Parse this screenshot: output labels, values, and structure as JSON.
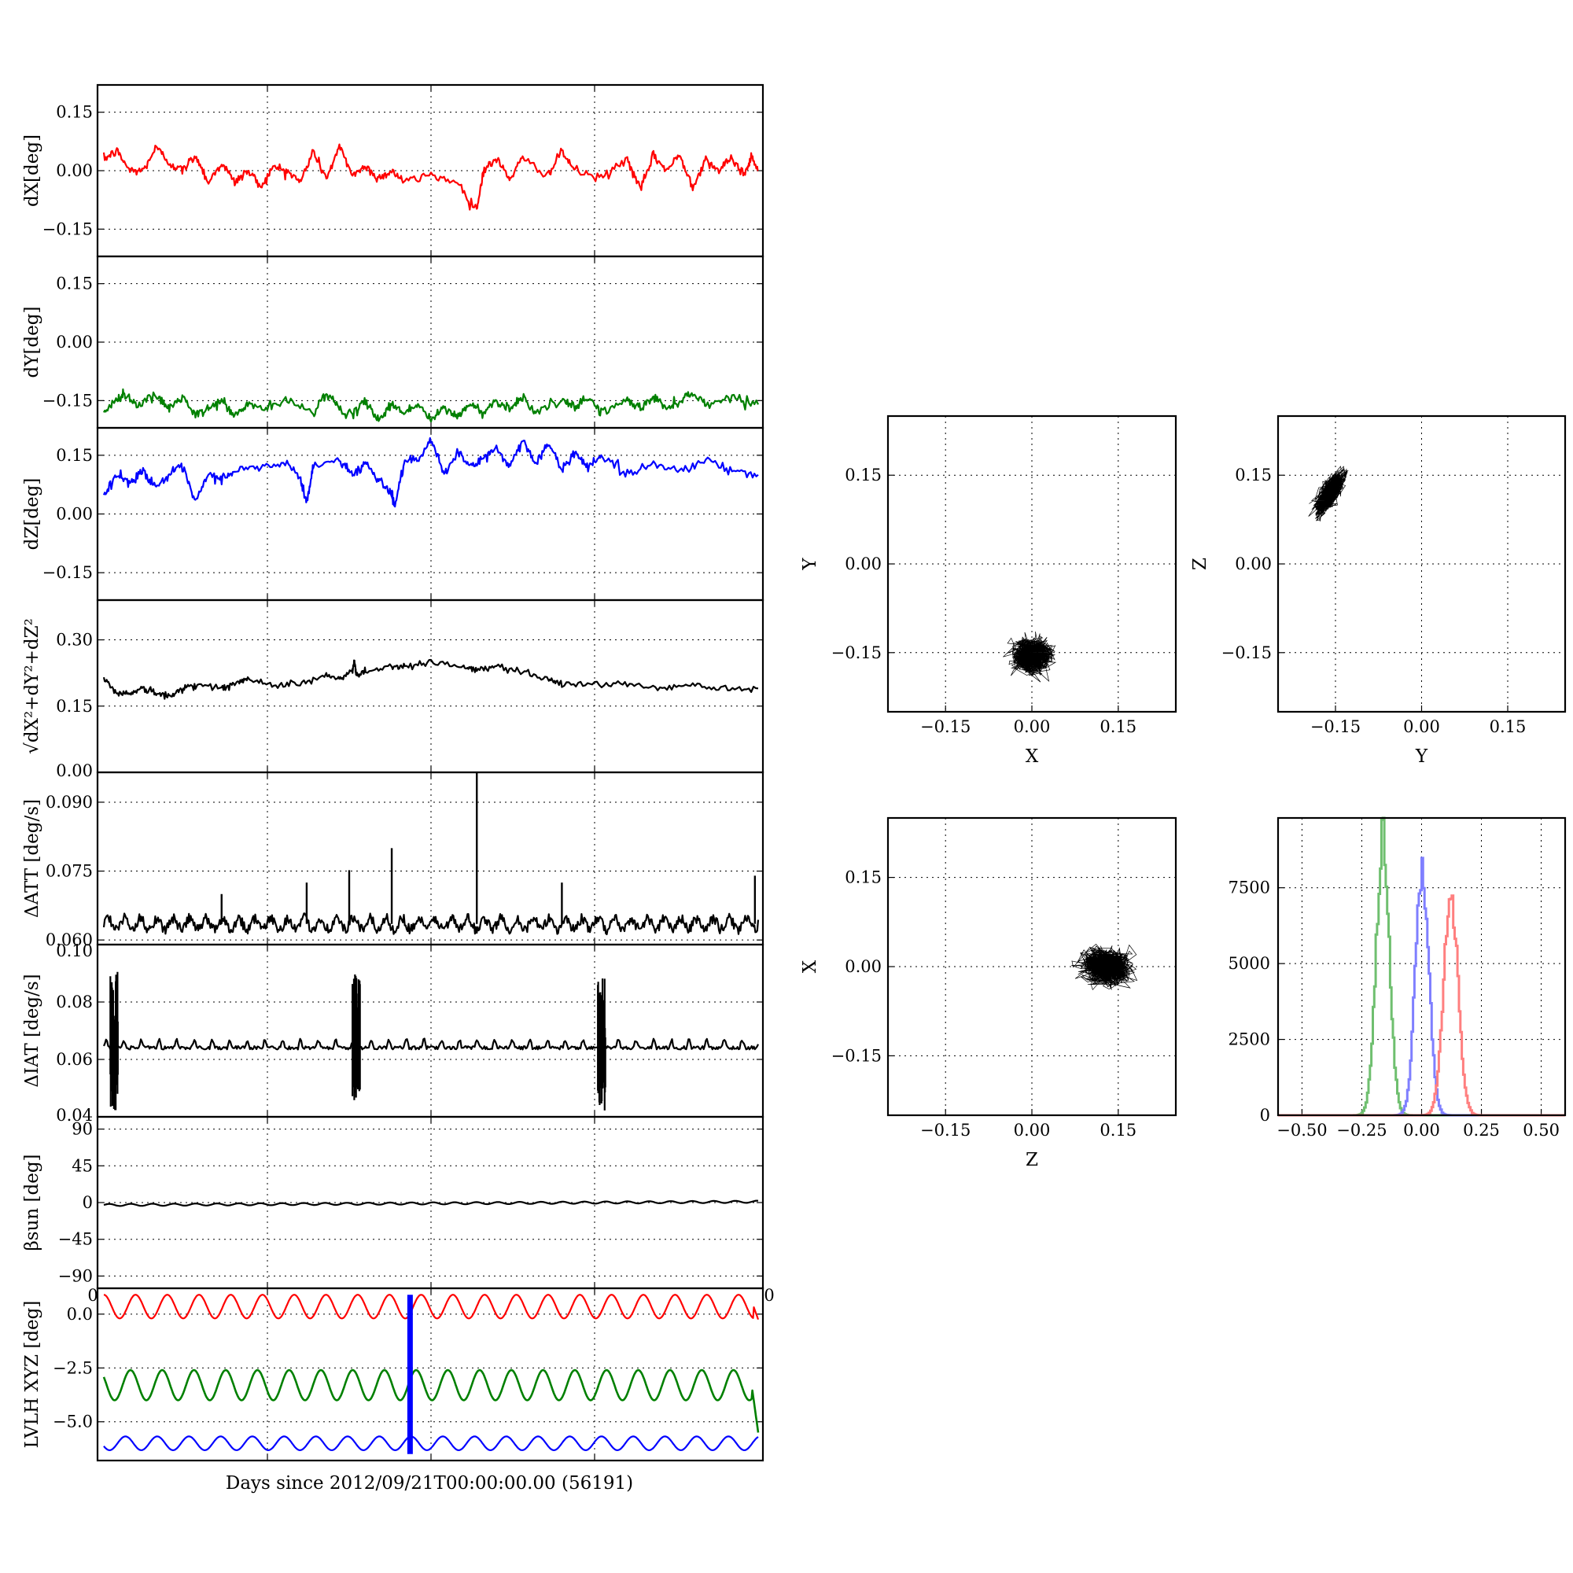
{
  "figure": {
    "common_xlabel": "Days since 2012/09/21T00:00:00.00 (56191)"
  },
  "chart_data": [
    {
      "type": "line",
      "key": "dx",
      "ylabel": "dX[deg]",
      "ylim": [
        -0.22,
        0.22
      ],
      "yticks": [
        -0.15,
        0.0,
        0.15
      ],
      "ytick_labels": [
        "−0.15",
        "0.00",
        "0.15"
      ],
      "xlim": [
        0,
        1
      ],
      "grid": true,
      "series": [
        {
          "color": "#ff0000",
          "lw": 2.2,
          "x": [
            0,
            0.02,
            0.04,
            0.06,
            0.08,
            0.1,
            0.12,
            0.14,
            0.16,
            0.18,
            0.2,
            0.22,
            0.24,
            0.26,
            0.28,
            0.3,
            0.32,
            0.34,
            0.36,
            0.38,
            0.4,
            0.42,
            0.44,
            0.46,
            0.5,
            0.54,
            0.57,
            0.58,
            0.6,
            0.62,
            0.64,
            0.68,
            0.7,
            0.72,
            0.76,
            0.8,
            0.82,
            0.84,
            0.86,
            0.88,
            0.9,
            0.92,
            0.94,
            0.96,
            0.98,
            0.99,
            1.0
          ],
          "values": [
            0.03,
            0.05,
            0.0,
            0.0,
            0.06,
            0.02,
            0.0,
            0.04,
            -0.03,
            0.02,
            -0.03,
            0.0,
            -0.04,
            0.01,
            0.0,
            -0.03,
            0.05,
            -0.02,
            0.06,
            -0.01,
            0.01,
            -0.02,
            0.0,
            -0.03,
            -0.01,
            -0.03,
            -0.1,
            0.0,
            0.03,
            -0.02,
            0.03,
            -0.01,
            0.05,
            0.0,
            -0.02,
            0.03,
            -0.05,
            0.04,
            0.0,
            0.04,
            -0.04,
            0.03,
            0.0,
            0.03,
            -0.01,
            0.04,
            0.0
          ]
        }
      ]
    },
    {
      "type": "line",
      "key": "dy",
      "ylabel": "dY[deg]",
      "ylim": [
        -0.22,
        0.22
      ],
      "yticks": [
        -0.15,
        0.0,
        0.15
      ],
      "ytick_labels": [
        "−0.15",
        "0.00",
        "0.15"
      ],
      "xlim": [
        0,
        1
      ],
      "grid": true,
      "series": [
        {
          "color": "#008000",
          "lw": 2.2,
          "x": [
            0,
            0.02,
            0.03,
            0.05,
            0.08,
            0.1,
            0.12,
            0.14,
            0.16,
            0.18,
            0.2,
            0.22,
            0.25,
            0.28,
            0.32,
            0.34,
            0.36,
            0.38,
            0.4,
            0.42,
            0.44,
            0.46,
            0.48,
            0.5,
            0.52,
            0.54,
            0.56,
            0.58,
            0.6,
            0.62,
            0.64,
            0.66,
            0.7,
            0.72,
            0.74,
            0.76,
            0.8,
            0.82,
            0.84,
            0.86,
            0.88,
            0.9,
            0.92,
            0.96,
            1.0
          ],
          "values": [
            -0.18,
            -0.15,
            -0.13,
            -0.16,
            -0.14,
            -0.17,
            -0.14,
            -0.19,
            -0.17,
            -0.15,
            -0.19,
            -0.16,
            -0.17,
            -0.15,
            -0.18,
            -0.13,
            -0.17,
            -0.19,
            -0.15,
            -0.2,
            -0.16,
            -0.18,
            -0.16,
            -0.2,
            -0.17,
            -0.19,
            -0.16,
            -0.18,
            -0.15,
            -0.17,
            -0.14,
            -0.18,
            -0.15,
            -0.17,
            -0.14,
            -0.18,
            -0.15,
            -0.17,
            -0.14,
            -0.17,
            -0.15,
            -0.13,
            -0.16,
            -0.14,
            -0.16
          ]
        }
      ]
    },
    {
      "type": "line",
      "key": "dz",
      "ylabel": "dZ[deg]",
      "ylim": [
        -0.22,
        0.22
      ],
      "yticks": [
        -0.15,
        0.0,
        0.15
      ],
      "ytick_labels": [
        "−0.15",
        "0.00",
        "0.15"
      ],
      "xlim": [
        0,
        1
      ],
      "grid": true,
      "series": [
        {
          "color": "#0000ff",
          "lw": 2.2,
          "x": [
            0,
            0.02,
            0.04,
            0.06,
            0.08,
            0.1,
            0.12,
            0.14,
            0.16,
            0.18,
            0.2,
            0.24,
            0.28,
            0.3,
            0.31,
            0.32,
            0.36,
            0.38,
            0.4,
            0.42,
            0.44,
            0.445,
            0.46,
            0.48,
            0.5,
            0.52,
            0.54,
            0.56,
            0.58,
            0.6,
            0.62,
            0.64,
            0.66,
            0.68,
            0.7,
            0.72,
            0.74,
            0.76,
            0.8,
            0.84,
            0.88,
            0.92,
            0.96,
            1.0
          ],
          "values": [
            0.05,
            0.1,
            0.08,
            0.11,
            0.07,
            0.1,
            0.12,
            0.03,
            0.1,
            0.09,
            0.11,
            0.12,
            0.13,
            0.09,
            0.03,
            0.12,
            0.14,
            0.1,
            0.13,
            0.09,
            0.05,
            0.02,
            0.14,
            0.13,
            0.19,
            0.1,
            0.16,
            0.12,
            0.14,
            0.17,
            0.12,
            0.19,
            0.13,
            0.18,
            0.11,
            0.16,
            0.12,
            0.15,
            0.1,
            0.13,
            0.11,
            0.14,
            0.11,
            0.1
          ]
        }
      ]
    },
    {
      "type": "line",
      "key": "dr",
      "ylabel": "√dX²+dY²+dZ²",
      "ylim": [
        0.0,
        0.39
      ],
      "yticks": [
        0.0,
        0.15,
        0.3
      ],
      "ytick_labels": [
        "0.00",
        "0.15",
        "0.30"
      ],
      "xlim": [
        0,
        1
      ],
      "grid": true,
      "series": [
        {
          "color": "#000000",
          "lw": 2.2,
          "x": [
            0,
            0.02,
            0.04,
            0.06,
            0.08,
            0.1,
            0.12,
            0.14,
            0.18,
            0.2,
            0.22,
            0.26,
            0.3,
            0.34,
            0.36,
            0.38,
            0.383,
            0.386,
            0.4,
            0.44,
            0.46,
            0.5,
            0.55,
            0.57,
            0.6,
            0.64,
            0.68,
            0.7,
            0.75,
            0.8,
            0.85,
            0.9,
            0.95,
            1.0
          ],
          "values": [
            0.21,
            0.18,
            0.18,
            0.19,
            0.18,
            0.17,
            0.19,
            0.2,
            0.19,
            0.2,
            0.21,
            0.2,
            0.2,
            0.22,
            0.21,
            0.23,
            0.25,
            0.22,
            0.23,
            0.24,
            0.24,
            0.25,
            0.24,
            0.23,
            0.24,
            0.23,
            0.21,
            0.2,
            0.2,
            0.2,
            0.19,
            0.2,
            0.19,
            0.19
          ]
        }
      ]
    },
    {
      "type": "line",
      "key": "datt",
      "ylabel": "ΔATT [deg/s]",
      "ylim": [
        0.059,
        0.0965
      ],
      "yticks": [
        0.06,
        0.075,
        0.09
      ],
      "ytick_labels": [
        "0.060",
        "0.075",
        "0.090"
      ],
      "xlim": [
        0,
        1
      ],
      "grid": true,
      "baseline": 0.0635,
      "ripple": 0.0012,
      "ripple_period": 0.025,
      "spikes": [
        {
          "x": 0.18,
          "y": 0.07
        },
        {
          "x": 0.31,
          "y": 0.0725
        },
        {
          "x": 0.375,
          "y": 0.0752
        },
        {
          "x": 0.44,
          "y": 0.08
        },
        {
          "x": 0.57,
          "y": 0.0965
        },
        {
          "x": 0.7,
          "y": 0.0725
        },
        {
          "x": 0.995,
          "y": 0.074
        }
      ],
      "series": [
        {
          "color": "#000000",
          "lw": 2.2
        }
      ]
    },
    {
      "type": "line",
      "key": "diat",
      "ylabel": "ΔIAT [deg/s]",
      "ylim": [
        0.04,
        0.1
      ],
      "yticks": [
        0.04,
        0.06,
        0.08,
        0.1
      ],
      "ytick_labels": [
        "0.04",
        "0.06",
        "0.08",
        "0.10"
      ],
      "xlim": [
        0,
        1
      ],
      "grid": true,
      "baseline": 0.0645,
      "ripple": 0.0015,
      "ripple_period": 0.027,
      "bursts": [
        0.01,
        0.38,
        0.755
      ],
      "series": [
        {
          "color": "#000000",
          "lw": 2.2
        }
      ]
    },
    {
      "type": "line",
      "key": "beta",
      "ylabel": "βsun [deg]",
      "ylim": [
        -105,
        105
      ],
      "yticks": [
        -90,
        -45,
        0,
        45,
        90
      ],
      "ytick_labels": [
        "−90",
        "−45",
        "0",
        "45",
        "90"
      ],
      "xlim": [
        0,
        1
      ],
      "grid": true,
      "xtick_labels": [
        "0",
        "0"
      ],
      "series": [
        {
          "color": "#000000",
          "lw": 2.2,
          "x": [
            0,
            1
          ],
          "values": [
            -3,
            1
          ]
        }
      ]
    },
    {
      "type": "line",
      "key": "lvlh",
      "ylabel": "LVLH XYZ [deg]",
      "ylim": [
        -6.8,
        1.2
      ],
      "yticks": [
        -5.0,
        -2.5,
        0.0
      ],
      "ytick_labels": [
        "−5.0",
        "−2.5",
        "0.0"
      ],
      "xlim": [
        0,
        1
      ],
      "grid": true,
      "marker_x": 0.468,
      "series": [
        {
          "color": "#ff0000",
          "lw": 2.2,
          "center": 0.35,
          "amp": 0.55
        },
        {
          "color": "#008000",
          "lw": 2.6,
          "center": -3.3,
          "amp": 0.7
        },
        {
          "color": "#0000ff",
          "lw": 2.2,
          "center": -6.0,
          "amp": 0.32
        }
      ]
    },
    {
      "type": "scatter",
      "key": "xy",
      "xlabel": "X",
      "ylabel": "Y",
      "xlim": [
        -0.25,
        0.25
      ],
      "ylim": [
        -0.25,
        0.25
      ],
      "ticks": [
        -0.15,
        0.0,
        0.15
      ],
      "tick_labels": [
        "−0.15",
        "0.00",
        "0.15"
      ],
      "cluster": {
        "cx": 0.0,
        "cy": -0.155,
        "sx": 0.035,
        "sy": 0.03,
        "corr": 0.0
      }
    },
    {
      "type": "scatter",
      "key": "yz",
      "xlabel": "Y",
      "ylabel": "Z",
      "xlim": [
        -0.25,
        0.25
      ],
      "ylim": [
        -0.25,
        0.25
      ],
      "ticks": [
        -0.15,
        0.0,
        0.15
      ],
      "tick_labels": [
        "−0.15",
        "0.00",
        "0.15"
      ],
      "cluster": {
        "cx": -0.16,
        "cy": 0.12,
        "sx": 0.025,
        "sy": 0.035,
        "corr": 0.7
      }
    },
    {
      "type": "scatter",
      "key": "zx",
      "xlabel": "Z",
      "ylabel": "X",
      "xlim": [
        -0.25,
        0.25
      ],
      "ylim": [
        -0.25,
        0.25
      ],
      "ticks": [
        -0.15,
        0.0,
        0.15
      ],
      "tick_labels": [
        "−0.15",
        "0.00",
        "0.15"
      ],
      "cluster": {
        "cx": 0.13,
        "cy": 0.0,
        "sx": 0.045,
        "sy": 0.03,
        "corr": -0.1
      }
    },
    {
      "type": "bar",
      "key": "hist",
      "xlim": [
        -0.6,
        0.6
      ],
      "ylim": [
        0,
        9800
      ],
      "xticks": [
        -0.5,
        -0.25,
        0.0,
        0.25,
        0.5
      ],
      "xtick_labels": [
        "−0.50",
        "−0.25",
        "0.00",
        "0.25",
        "0.50"
      ],
      "yticks": [
        0,
        2500,
        5000,
        7500
      ],
      "ytick_labels": [
        "0",
        "2500",
        "5000",
        "7500"
      ],
      "series": [
        {
          "color": "#6fbf6f",
          "mu": -0.165,
          "sigma": 0.028,
          "peak": 9000
        },
        {
          "color": "#7f7fff",
          "mu": 0.0,
          "sigma": 0.028,
          "peak": 8300
        },
        {
          "color": "#ff7f7f",
          "mu": 0.12,
          "sigma": 0.03,
          "peak": 7400
        }
      ]
    }
  ]
}
